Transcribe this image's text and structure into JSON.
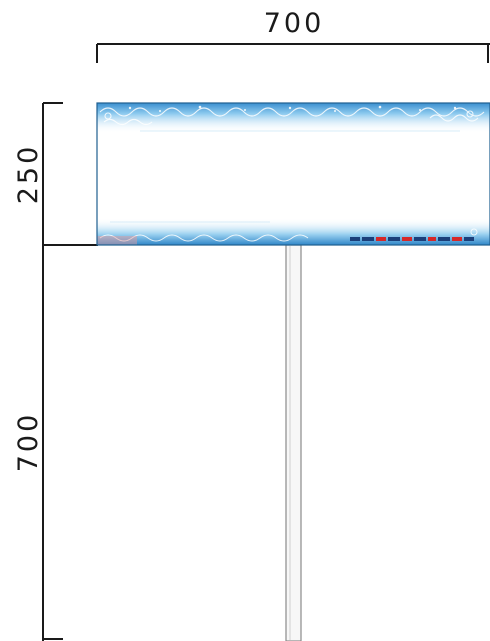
{
  "dimensions": {
    "width_label": "700",
    "panel_height_label": "250",
    "pole_height_label": "700"
  },
  "colors": {
    "dimension_line": "#1a1a1a",
    "panel_border": "#1f5f8f",
    "panel_top_band": "#5aa9dc",
    "panel_bottom_band": "#4f9fd6",
    "pole_fill": "#f5f5f5",
    "pole_stroke": "#8a8a8a",
    "accent_red": "#d62828"
  }
}
